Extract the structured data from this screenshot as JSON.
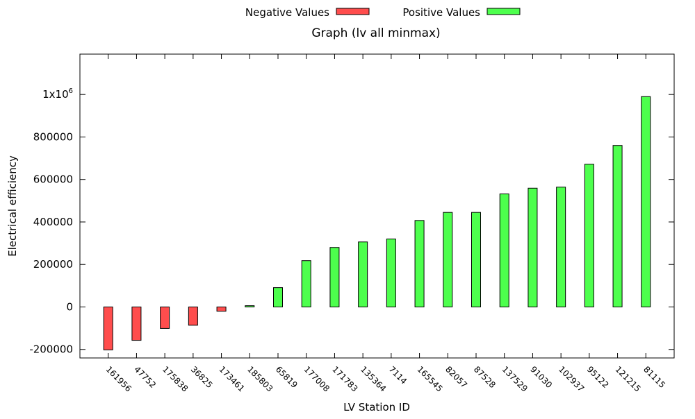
{
  "chart_data": {
    "type": "bar",
    "title": "Graph (lv all minmax)",
    "xlabel": "LV Station ID",
    "ylabel": "Electrical efficiency",
    "ylim": [
      -240000,
      1190000
    ],
    "yticks": [
      -200000,
      0,
      200000,
      400000,
      600000,
      800000,
      1000000
    ],
    "ytick_labels": [
      "-200000",
      "0",
      "200000",
      "400000",
      "600000",
      "800000",
      "1x10"
    ],
    "ytick_superscript": "6",
    "grid": false,
    "legend_position": "top",
    "categories": [
      "161956",
      "47752",
      "175838",
      "36825",
      "173461",
      "185803",
      "65819",
      "177008",
      "171783",
      "135364",
      "7114",
      "165545",
      "82057",
      "87528",
      "137529",
      "91030",
      "102937",
      "95122",
      "121215",
      "81115"
    ],
    "series": [
      {
        "name": "Negative Values",
        "color": "#ff4d4d",
        "values": [
          -202000,
          -157000,
          -101000,
          -86000,
          -20000,
          null,
          null,
          null,
          null,
          null,
          null,
          null,
          null,
          null,
          null,
          null,
          null,
          null,
          null,
          null
        ]
      },
      {
        "name": "Positive Values",
        "color": "#4dff4d",
        "values": [
          null,
          null,
          null,
          null,
          null,
          6000,
          91000,
          218000,
          280000,
          306000,
          320000,
          407000,
          445000,
          445000,
          532000,
          559000,
          564000,
          672000,
          760000,
          990000
        ]
      }
    ]
  }
}
